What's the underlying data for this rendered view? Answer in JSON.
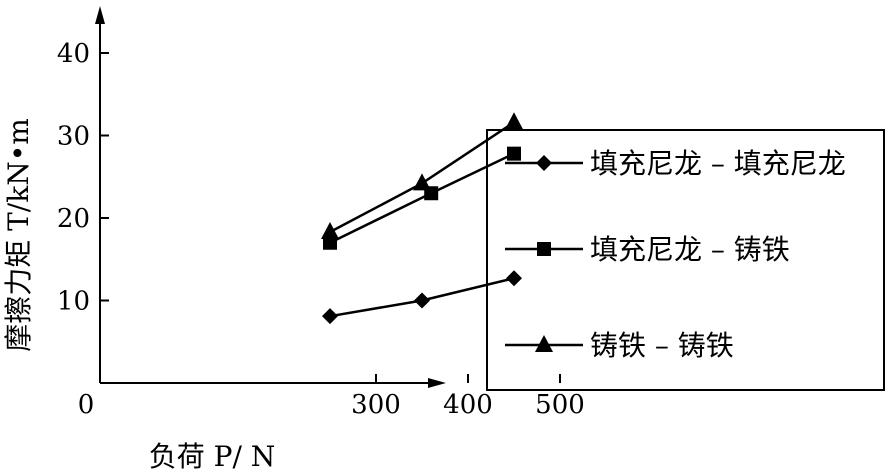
{
  "chart_data": {
    "type": "line",
    "xlabel": "负荷 P/ N",
    "ylabel": "摩擦力矩 T/kN•m",
    "xlim": [
      0,
      550
    ],
    "ylim": [
      0,
      45
    ],
    "xticks": [
      0,
      300,
      400,
      500
    ],
    "yticks": [
      10,
      20,
      30,
      40
    ],
    "x_tick_labels": [
      "0",
      "300",
      "400",
      "500"
    ],
    "y_tick_labels": [
      "10",
      "20",
      "30",
      "40"
    ],
    "grid": false,
    "legend_position": "right",
    "series": [
      {
        "name": "填充尼龙 – 填充尼龙",
        "marker": "diamond",
        "color": "#000000",
        "x": [
          250,
          350,
          450
        ],
        "y": [
          8.1,
          10.0,
          12.7
        ]
      },
      {
        "name": "填充尼龙 – 铸铁",
        "marker": "square",
        "color": "#000000",
        "x": [
          250,
          360,
          450
        ],
        "y": [
          17.0,
          23.0,
          27.8
        ]
      },
      {
        "name": "铸铁 – 铸铁",
        "marker": "triangle",
        "color": "#000000",
        "x": [
          250,
          350,
          450
        ],
        "y": [
          18.3,
          24.2,
          31.6
        ]
      }
    ]
  }
}
